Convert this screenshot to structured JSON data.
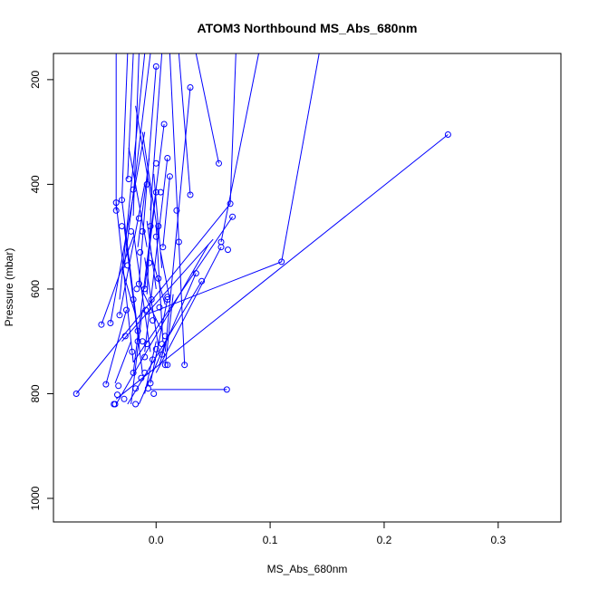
{
  "chart_data": {
    "type": "line",
    "title": "ATOM3 Northbound MS_Abs_680nm",
    "xlabel": "MS_Abs_680nm",
    "ylabel": "Pressure (mbar)",
    "xlim": [
      -0.09,
      0.355
    ],
    "ylim": [
      1045,
      150
    ],
    "y_reversed": true,
    "x_ticks": [
      {
        "value": 0.0,
        "label": "0.0"
      },
      {
        "value": 0.1,
        "label": "0.1"
      },
      {
        "value": 0.2,
        "label": "0.2"
      },
      {
        "value": 0.3,
        "label": "0.3"
      }
    ],
    "y_ticks": [
      {
        "value": 200,
        "label": "200"
      },
      {
        "value": 400,
        "label": "400"
      },
      {
        "value": 600,
        "label": "600"
      },
      {
        "value": 800,
        "label": "800"
      },
      {
        "value": 1000,
        "label": "1000"
      }
    ],
    "color": "#0000ff",
    "grid": false,
    "legend": "none",
    "series": [
      {
        "values": [
          [
            0.256,
            305
          ],
          [
            -0.035,
            810
          ]
        ]
      },
      {
        "values": [
          [
            0.11,
            548
          ],
          [
            0.143,
            150
          ]
        ]
      },
      {
        "values": [
          [
            0.11,
            548
          ],
          [
            -0.01,
            650
          ]
        ]
      },
      {
        "values": [
          [
            0.067,
            462
          ],
          [
            -0.02,
            740
          ]
        ]
      },
      {
        "values": [
          [
            0.065,
            437
          ],
          [
            0.07,
            150
          ]
        ]
      },
      {
        "values": [
          [
            0.065,
            437
          ],
          [
            -0.07,
            800
          ]
        ]
      },
      {
        "values": [
          [
            0.062,
            792
          ],
          [
            -0.005,
            792
          ]
        ]
      },
      {
        "values": [
          [
            0.057,
            510
          ],
          [
            0.09,
            150
          ]
        ]
      },
      {
        "values": [
          [
            0.057,
            520
          ],
          [
            0.0,
            760
          ]
        ]
      },
      {
        "values": [
          [
            0.055,
            360
          ],
          [
            0.035,
            150
          ]
        ]
      },
      {
        "values": [
          [
            0.05,
            505
          ],
          [
            -0.03,
            700
          ]
        ]
      },
      {
        "values": [
          [
            0.046,
            515
          ],
          [
            -0.035,
            820
          ]
        ]
      },
      {
        "values": [
          [
            0.04,
            585
          ],
          [
            -0.025,
            820
          ]
        ]
      },
      {
        "values": [
          [
            0.035,
            570
          ],
          [
            -0.015,
            820
          ]
        ]
      },
      {
        "values": [
          [
            0.03,
            420
          ],
          [
            0.02,
            150
          ]
        ]
      },
      {
        "values": [
          [
            0.03,
            215
          ],
          [
            0.008,
            720
          ]
        ]
      },
      {
        "values": [
          [
            0.025,
            745
          ],
          [
            0.02,
            510
          ]
        ]
      },
      {
        "values": [
          [
            0.02,
            510
          ],
          [
            0.012,
            150
          ]
        ]
      },
      {
        "values": [
          [
            0.01,
            620
          ],
          [
            -0.005,
            780
          ]
        ]
      },
      {
        "values": [
          [
            0.01,
            350
          ],
          [
            -0.01,
            720
          ]
        ]
      },
      {
        "values": [
          [
            0.007,
            285
          ],
          [
            -0.02,
            760
          ]
        ]
      },
      {
        "values": [
          [
            0.005,
            150
          ],
          [
            -0.005,
            450
          ]
        ]
      },
      {
        "values": [
          [
            0.0,
            175
          ],
          [
            -0.015,
            590
          ]
        ]
      },
      {
        "values": [
          [
            -0.005,
            150
          ],
          [
            -0.028,
            560
          ]
        ]
      },
      {
        "values": [
          [
            -0.01,
            150
          ],
          [
            -0.032,
            620
          ]
        ]
      },
      {
        "values": [
          [
            -0.015,
            150
          ],
          [
            -0.02,
            460
          ]
        ]
      },
      {
        "values": [
          [
            -0.02,
            150
          ],
          [
            -0.025,
            390
          ]
        ]
      },
      {
        "values": [
          [
            -0.025,
            150
          ],
          [
            -0.03,
            430
          ]
        ]
      },
      {
        "values": [
          [
            -0.035,
            150
          ],
          [
            -0.035,
            450
          ]
        ]
      },
      {
        "values": [
          [
            -0.035,
            435
          ],
          [
            -0.02,
            740
          ]
        ]
      },
      {
        "values": [
          [
            -0.03,
            430
          ],
          [
            -0.015,
            700
          ]
        ]
      },
      {
        "values": [
          [
            -0.04,
            665
          ],
          [
            -0.01,
            300
          ]
        ]
      },
      {
        "values": [
          [
            -0.048,
            668
          ],
          [
            -0.02,
            500
          ]
        ]
      },
      {
        "values": [
          [
            -0.032,
            650
          ],
          [
            -0.01,
            400
          ]
        ]
      },
      {
        "values": [
          [
            -0.028,
            480
          ],
          [
            -0.012,
            760
          ]
        ]
      },
      {
        "values": [
          [
            -0.02,
            490
          ],
          [
            -0.005,
            720
          ]
        ]
      },
      {
        "values": [
          [
            -0.015,
            590
          ],
          [
            0.005,
            680
          ]
        ]
      },
      {
        "values": [
          [
            -0.01,
            540
          ],
          [
            0.002,
            710
          ]
        ]
      },
      {
        "values": [
          [
            -0.008,
            470
          ],
          [
            0.0,
            600
          ]
        ]
      },
      {
        "values": [
          [
            -0.005,
            530
          ],
          [
            0.008,
            630
          ]
        ]
      },
      {
        "values": [
          [
            -0.002,
            380
          ],
          [
            0.005,
            560
          ]
        ]
      },
      {
        "values": [
          [
            0.0,
            480
          ],
          [
            0.006,
            700
          ]
        ]
      },
      {
        "values": [
          [
            -0.012,
            300
          ],
          [
            0.002,
            500
          ]
        ]
      },
      {
        "values": [
          [
            -0.018,
            250
          ],
          [
            -0.004,
            430
          ]
        ]
      },
      {
        "values": [
          [
            -0.024,
            330
          ],
          [
            -0.008,
            520
          ]
        ]
      },
      {
        "values": [
          [
            -0.03,
            560
          ],
          [
            -0.018,
            650
          ]
        ]
      },
      {
        "values": [
          [
            -0.036,
            780
          ],
          [
            -0.022,
            700
          ]
        ]
      },
      {
        "values": [
          [
            -0.022,
            820
          ],
          [
            -0.012,
            640
          ]
        ]
      },
      {
        "values": [
          [
            -0.01,
            800
          ],
          [
            0.0,
            700
          ]
        ]
      },
      {
        "values": [
          [
            0.003,
            745
          ],
          [
            0.01,
            690
          ]
        ]
      },
      {
        "values": [
          [
            0.008,
            748
          ],
          [
            0.015,
            610
          ]
        ]
      },
      {
        "values": [
          [
            -0.044,
            782
          ],
          [
            -0.026,
            640
          ]
        ]
      },
      {
        "values": [
          [
            0.004,
            530
          ],
          [
            0.012,
            620
          ]
        ]
      },
      {
        "values": [
          [
            -0.008,
            610
          ],
          [
            -0.004,
            430
          ]
        ]
      },
      {
        "values": [
          [
            -0.016,
            520
          ],
          [
            -0.006,
            350
          ]
        ]
      },
      {
        "values": [
          [
            0.012,
            385
          ],
          [
            0.006,
            520
          ]
        ]
      },
      {
        "values": [
          [
            0.0,
            415
          ],
          [
            -0.01,
            600
          ]
        ]
      }
    ],
    "markers": [
      [
        0.256,
        305
      ],
      [
        0.11,
        548
      ],
      [
        0.067,
        462
      ],
      [
        0.065,
        437
      ],
      [
        0.063,
        525
      ],
      [
        0.062,
        792
      ],
      [
        0.057,
        510
      ],
      [
        0.057,
        520
      ],
      [
        0.055,
        360
      ],
      [
        0.04,
        585
      ],
      [
        0.035,
        570
      ],
      [
        0.03,
        420
      ],
      [
        0.03,
        215
      ],
      [
        0.025,
        745
      ],
      [
        0.02,
        510
      ],
      [
        0.018,
        450
      ],
      [
        0.01,
        620
      ],
      [
        0.01,
        350
      ],
      [
        0.01,
        745
      ],
      [
        0.008,
        745
      ],
      [
        0.007,
        285
      ],
      [
        0.005,
        705
      ],
      [
        0.005,
        725
      ],
      [
        0.004,
        415
      ],
      [
        0.003,
        635
      ],
      [
        0.002,
        480
      ],
      [
        0.0,
        175
      ],
      [
        0.0,
        360
      ],
      [
        0.0,
        500
      ],
      [
        0.0,
        715
      ],
      [
        -0.002,
        800
      ],
      [
        -0.003,
        735
      ],
      [
        -0.005,
        480
      ],
      [
        -0.005,
        780
      ],
      [
        -0.007,
        790
      ],
      [
        -0.008,
        705
      ],
      [
        -0.01,
        600
      ],
      [
        -0.01,
        760
      ],
      [
        -0.012,
        490
      ],
      [
        -0.013,
        770
      ],
      [
        -0.015,
        465
      ],
      [
        -0.015,
        590
      ],
      [
        -0.016,
        700
      ],
      [
        -0.018,
        790
      ],
      [
        -0.018,
        820
      ],
      [
        -0.02,
        410
      ],
      [
        -0.02,
        620
      ],
      [
        -0.02,
        760
      ],
      [
        -0.022,
        490
      ],
      [
        -0.024,
        390
      ],
      [
        -0.025,
        555
      ],
      [
        -0.026,
        640
      ],
      [
        -0.028,
        810
      ],
      [
        -0.03,
        430
      ],
      [
        -0.03,
        480
      ],
      [
        -0.032,
        650
      ],
      [
        -0.033,
        785
      ],
      [
        -0.034,
        802
      ],
      [
        -0.035,
        435
      ],
      [
        -0.035,
        450
      ],
      [
        -0.036,
        820
      ],
      [
        -0.037,
        820
      ],
      [
        -0.04,
        665
      ],
      [
        -0.044,
        782
      ],
      [
        -0.048,
        668
      ],
      [
        -0.07,
        800
      ],
      [
        0.012,
        385
      ],
      [
        0.01,
        615
      ],
      [
        0.008,
        690
      ],
      [
        0.006,
        520
      ],
      [
        -0.004,
        620
      ],
      [
        -0.006,
        550
      ],
      [
        -0.009,
        640
      ],
      [
        -0.012,
        700
      ],
      [
        -0.014,
        530
      ],
      [
        -0.017,
        600
      ],
      [
        -0.021,
        720
      ],
      [
        -0.027,
        690
      ],
      [
        0.0,
        415
      ],
      [
        0.002,
        580
      ],
      [
        -0.003,
        660
      ],
      [
        -0.008,
        400
      ],
      [
        -0.01,
        730
      ],
      [
        -0.016,
        680
      ]
    ]
  }
}
